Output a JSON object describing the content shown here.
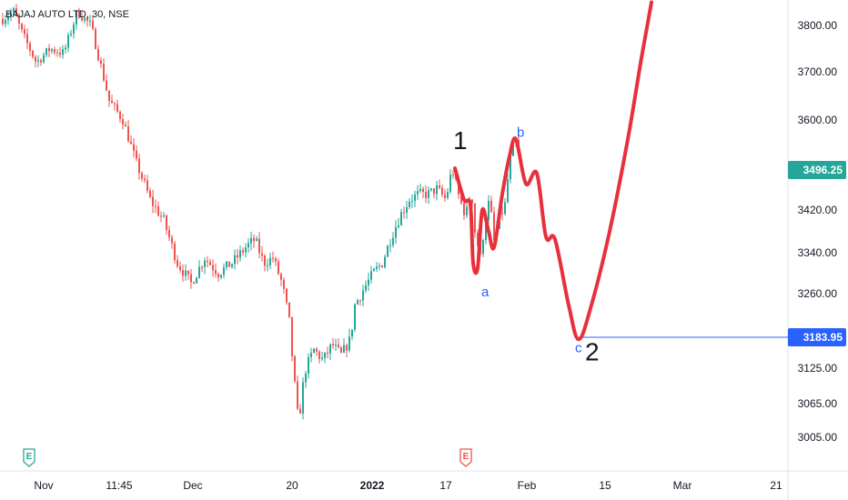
{
  "header": {
    "title": "BAJAJ AUTO LTD, 30, NSE"
  },
  "colors": {
    "up": "#26a69a",
    "down": "#ef5350",
    "projection": "#e8303c",
    "level_line": "#2962ff",
    "last_price_badge": "#26a69a",
    "level_badge": "#2962ff",
    "event_earnings_green": "#26a69a",
    "event_earnings_red": "#ef5350"
  },
  "chart_data": {
    "type": "candlestick",
    "symbol": "BAJAJ AUTO LTD",
    "interval": "30",
    "exchange": "NSE",
    "y_axis": {
      "ticks": [
        "3800.00",
        "3700.00",
        "3600.00",
        "3420.00",
        "3340.00",
        "3260.00",
        "3125.00",
        "3065.00",
        "3005.00"
      ],
      "ylim": [
        2980,
        3850
      ]
    },
    "x_axis": {
      "ticks": [
        {
          "label": "Nov",
          "bold": false
        },
        {
          "label": "11:45",
          "bold": false
        },
        {
          "label": "Dec",
          "bold": false
        },
        {
          "label": "20",
          "bold": false
        },
        {
          "label": "2022",
          "bold": true
        },
        {
          "label": "17",
          "bold": false
        },
        {
          "label": "Feb",
          "bold": false
        },
        {
          "label": "15",
          "bold": false
        },
        {
          "label": "Mar",
          "bold": false
        },
        {
          "label": "21",
          "bold": false
        }
      ]
    },
    "price_path": [
      [
        0,
        3810
      ],
      [
        15,
        3830
      ],
      [
        25,
        3780
      ],
      [
        40,
        3720
      ],
      [
        55,
        3750
      ],
      [
        70,
        3740
      ],
      [
        85,
        3830
      ],
      [
        100,
        3800
      ],
      [
        110,
        3720
      ],
      [
        120,
        3640
      ],
      [
        135,
        3600
      ],
      [
        150,
        3510
      ],
      [
        165,
        3440
      ],
      [
        180,
        3400
      ],
      [
        195,
        3320
      ],
      [
        210,
        3280
      ],
      [
        225,
        3330
      ],
      [
        240,
        3300
      ],
      [
        255,
        3320
      ],
      [
        270,
        3350
      ],
      [
        280,
        3365
      ],
      [
        290,
        3320
      ],
      [
        300,
        3330
      ],
      [
        310,
        3280
      ],
      [
        318,
        3210
      ],
      [
        323,
        3110
      ],
      [
        328,
        3030
      ],
      [
        335,
        3120
      ],
      [
        345,
        3160
      ],
      [
        355,
        3140
      ],
      [
        365,
        3170
      ],
      [
        375,
        3150
      ],
      [
        385,
        3180
      ],
      [
        390,
        3240
      ],
      [
        400,
        3270
      ],
      [
        410,
        3300
      ],
      [
        420,
        3320
      ],
      [
        430,
        3370
      ],
      [
        440,
        3410
      ],
      [
        450,
        3440
      ],
      [
        460,
        3450
      ],
      [
        470,
        3450
      ],
      [
        480,
        3460
      ],
      [
        490,
        3440
      ],
      [
        497,
        3500
      ],
      [
        505,
        3440
      ],
      [
        512,
        3410
      ],
      [
        518,
        3460
      ],
      [
        522,
        3380
      ],
      [
        528,
        3330
      ],
      [
        533,
        3400
      ],
      [
        538,
        3440
      ],
      [
        543,
        3360
      ],
      [
        548,
        3400
      ],
      [
        555,
        3430
      ],
      [
        560,
        3510
      ],
      [
        566,
        3560
      ],
      [
        572,
        3520
      ]
    ],
    "projection": [
      [
        500,
        3500
      ],
      [
        510,
        3440
      ],
      [
        517,
        3430
      ],
      [
        520,
        3320
      ],
      [
        525,
        3310
      ],
      [
        530,
        3420
      ],
      [
        537,
        3380
      ],
      [
        543,
        3350
      ],
      [
        552,
        3450
      ],
      [
        560,
        3525
      ],
      [
        567,
        3560
      ],
      [
        578,
        3470
      ],
      [
        590,
        3490
      ],
      [
        600,
        3370
      ],
      [
        610,
        3365
      ],
      [
        625,
        3240
      ],
      [
        636,
        3180
      ],
      [
        650,
        3240
      ],
      [
        670,
        3380
      ],
      [
        690,
        3560
      ],
      [
        705,
        3730
      ],
      [
        716,
        3850
      ]
    ],
    "wave_labels": [
      {
        "text": "1",
        "size": "big",
        "x": 498,
        "price": 3540
      },
      {
        "text": "b",
        "size": "small",
        "x": 568,
        "price": 3565
      },
      {
        "text": "a",
        "size": "small",
        "x": 529,
        "price": 3255
      },
      {
        "text": "c",
        "size": "small",
        "x": 632,
        "price": 3155
      },
      {
        "text": "2",
        "size": "big",
        "x": 643,
        "price": 3140
      }
    ],
    "levels": [
      {
        "price": 3183.95,
        "label": "3183.95",
        "x_start": 636
      }
    ],
    "last_price": {
      "value": 3496.25,
      "label": "3496.25"
    },
    "events": [
      {
        "x": 32,
        "label": "E",
        "color": "green"
      },
      {
        "x": 512,
        "label": "E",
        "color": "red"
      }
    ]
  }
}
